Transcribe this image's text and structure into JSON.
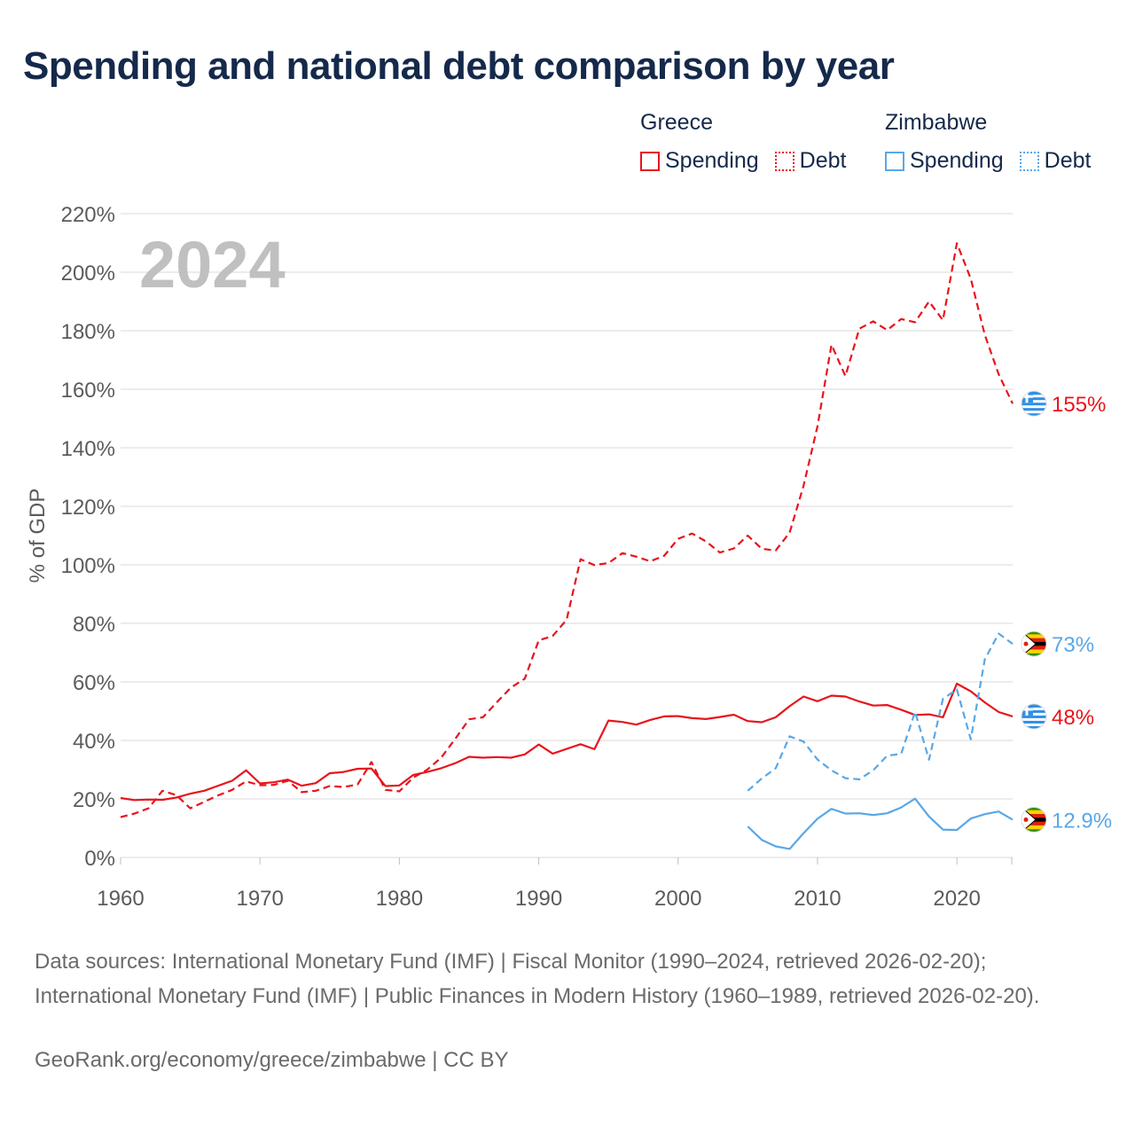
{
  "title": "Spending and national debt comparison by year",
  "legend": {
    "groups": [
      {
        "country": "Greece",
        "items": [
          "Spending",
          "Debt"
        ]
      },
      {
        "country": "Zimbabwe",
        "items": [
          "Spending",
          "Debt"
        ]
      }
    ]
  },
  "colors": {
    "greece": "#e8141c",
    "zimbabwe": "#5aa7e6",
    "grid": "#e6e6e6",
    "axis_text": "#5b5b5b",
    "year_watermark": "#c0c0c0"
  },
  "year_watermark": "2024",
  "sources": "Data sources: International Monetary Fund (IMF) | Fiscal Monitor (1990–2024, retrieved 2026-02-20); International Monetary Fund (IMF) | Public Finances in Modern History (1960–1989, retrieved 2026-02-20).",
  "footer": "GeoRank.org/economy/greece/zimbabwe | CC BY",
  "chart_data": {
    "type": "line",
    "title": "Spending and national debt comparison by year",
    "xlabel": "",
    "ylabel": "% of GDP",
    "xlim": [
      1960,
      2024
    ],
    "ylim": [
      0,
      220
    ],
    "x_ticks": [
      1960,
      1970,
      1980,
      1990,
      2000,
      2010,
      2020
    ],
    "y_ticks": [
      0,
      20,
      40,
      60,
      80,
      100,
      120,
      140,
      160,
      180,
      200,
      220
    ],
    "y_tick_labels": [
      "0%",
      "20%",
      "40%",
      "60%",
      "80%",
      "100%",
      "120%",
      "140%",
      "160%",
      "180%",
      "200%",
      "220%"
    ],
    "grid": true,
    "series": [
      {
        "name": "Greece Spending",
        "country": "Greece",
        "metric": "Spending",
        "style": "solid",
        "color": "#e8141c",
        "x": [
          1960,
          1961,
          1962,
          1963,
          1964,
          1965,
          1966,
          1967,
          1968,
          1969,
          1970,
          1971,
          1972,
          1973,
          1974,
          1975,
          1976,
          1977,
          1978,
          1979,
          1980,
          1981,
          1982,
          1983,
          1984,
          1985,
          1986,
          1987,
          1988,
          1989,
          1990,
          1991,
          1992,
          1993,
          1994,
          1995,
          1996,
          1997,
          1998,
          1999,
          2000,
          2001,
          2002,
          2003,
          2004,
          2005,
          2006,
          2007,
          2008,
          2009,
          2010,
          2011,
          2012,
          2013,
          2014,
          2015,
          2016,
          2017,
          2018,
          2019,
          2020,
          2021,
          2022,
          2023,
          2024
        ],
        "values": [
          20.3,
          19.6,
          19.8,
          19.7,
          20.5,
          21.8,
          22.8,
          24.5,
          26.2,
          29.8,
          25.3,
          25.7,
          26.6,
          24.5,
          25.4,
          28.8,
          29.2,
          30.3,
          30.4,
          24.4,
          24.6,
          28.2,
          29.2,
          30.5,
          32.2,
          34.4,
          34.1,
          34.3,
          34.1,
          35.2,
          38.6,
          35.5,
          37.1,
          38.7,
          37.0,
          46.8,
          46.3,
          45.4,
          47.0,
          48.2,
          48.3,
          47.6,
          47.3,
          48.0,
          48.8,
          46.6,
          46.2,
          47.9,
          51.7,
          55.0,
          53.4,
          55.3,
          55.0,
          53.3,
          51.9,
          52.1,
          50.5,
          48.7,
          48.9,
          47.9,
          59.4,
          56.8,
          53.0,
          49.7,
          48.2
        ],
        "end_label": "48%"
      },
      {
        "name": "Greece Debt",
        "country": "Greece",
        "metric": "Debt",
        "style": "dashed",
        "color": "#e8141c",
        "x": [
          1960,
          1961,
          1962,
          1963,
          1964,
          1965,
          1966,
          1967,
          1968,
          1969,
          1970,
          1971,
          1972,
          1973,
          1974,
          1975,
          1976,
          1977,
          1978,
          1979,
          1980,
          1981,
          1982,
          1983,
          1984,
          1985,
          1986,
          1987,
          1988,
          1989,
          1990,
          1991,
          1992,
          1993,
          1994,
          1995,
          1996,
          1997,
          1998,
          1999,
          2000,
          2001,
          2002,
          2003,
          2004,
          2005,
          2006,
          2007,
          2008,
          2009,
          2010,
          2011,
          2012,
          2013,
          2014,
          2015,
          2016,
          2017,
          2018,
          2019,
          2020,
          2021,
          2022,
          2023,
          2024
        ],
        "values": [
          13.8,
          15.0,
          16.8,
          22.8,
          21.3,
          16.8,
          19.0,
          21.2,
          23.1,
          26.0,
          24.7,
          24.8,
          26.2,
          22.3,
          22.8,
          24.4,
          24.1,
          24.9,
          32.6,
          23.1,
          22.6,
          27.3,
          30.0,
          34.1,
          40.5,
          47.2,
          47.9,
          53.1,
          58.0,
          61.1,
          74.2,
          75.7,
          81.2,
          101.9,
          99.9,
          100.6,
          104.0,
          102.8,
          101.2,
          103.1,
          108.9,
          110.7,
          108.0,
          104.2,
          105.6,
          110.0,
          105.5,
          104.9,
          111.0,
          127.0,
          147.3,
          175.2,
          164.5,
          180.7,
          183.2,
          180.2,
          184.0,
          182.9,
          190.0,
          183.6,
          209.9,
          197.8,
          178.6,
          165.1,
          155.1
        ],
        "end_label": "155%"
      },
      {
        "name": "Zimbabwe Spending",
        "country": "Zimbabwe",
        "metric": "Spending",
        "style": "solid",
        "color": "#5aa7e6",
        "x": [
          2005,
          2006,
          2007,
          2008,
          2009,
          2010,
          2011,
          2012,
          2013,
          2014,
          2015,
          2016,
          2017,
          2018,
          2019,
          2020,
          2021,
          2022,
          2023,
          2024
        ],
        "values": [
          10.6,
          6.0,
          3.8,
          2.9,
          8.3,
          13.2,
          16.6,
          15.0,
          15.1,
          14.5,
          15.1,
          17.1,
          20.1,
          14.0,
          9.5,
          9.4,
          13.3,
          14.8,
          15.7,
          12.9
        ],
        "end_label": "12.9%"
      },
      {
        "name": "Zimbabwe Debt",
        "country": "Zimbabwe",
        "metric": "Debt",
        "style": "dashed",
        "color": "#5aa7e6",
        "x": [
          2005,
          2006,
          2007,
          2008,
          2009,
          2010,
          2011,
          2012,
          2013,
          2014,
          2015,
          2016,
          2017,
          2018,
          2019,
          2020,
          2021,
          2022,
          2023,
          2024
        ],
        "values": [
          22.8,
          27.0,
          30.5,
          41.4,
          39.6,
          33.5,
          29.8,
          27.1,
          26.7,
          29.8,
          34.8,
          35.4,
          49.8,
          33.4,
          54.2,
          57.4,
          40.4,
          67.7,
          76.5,
          73.0
        ],
        "end_label": "73%"
      }
    ]
  }
}
